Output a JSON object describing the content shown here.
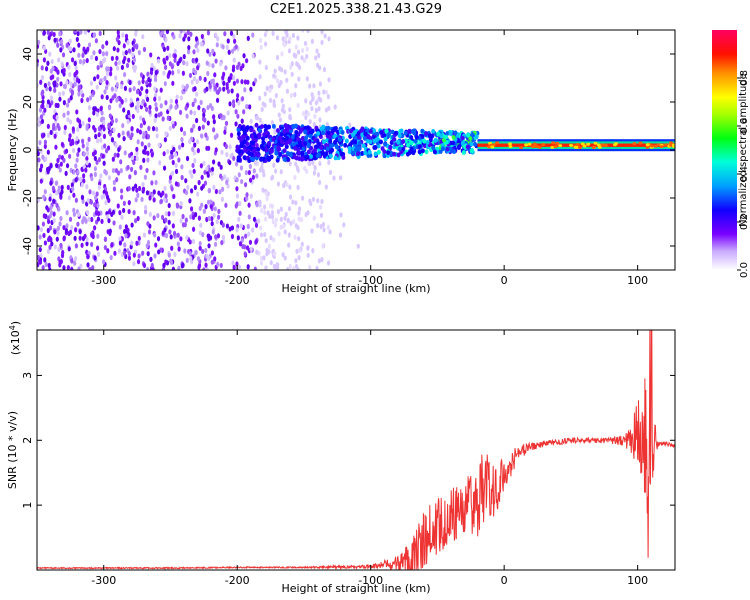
{
  "title": "C2E1.2025.338.21.43.G29",
  "top_chart": {
    "type": "heatmap",
    "xlabel": "Height of straight line (km)",
    "ylabel": "Frequency (Hz)",
    "xlim": [
      -350,
      128
    ],
    "ylim": [
      -50,
      50
    ],
    "xticks": [
      -300,
      -200,
      -100,
      0,
      100
    ],
    "yticks": [
      -40,
      -20,
      0,
      20,
      40
    ],
    "colorbar": {
      "label": "Normalized spectral amplitude",
      "range": [
        0,
        1
      ],
      "ticks": [
        "0.0",
        "0.2",
        "0.4",
        "0.6",
        "0.8"
      ],
      "colormap": [
        "#f0e8ff",
        "#a060ff",
        "#6a00ff",
        "#0000ff",
        "#00aaff",
        "#00ffcc",
        "#00ff00",
        "#aaff00",
        "#ffff00",
        "#ffaa00",
        "#ff2200",
        "#ff0066"
      ]
    },
    "regions": [
      {
        "desc": "broadband noise",
        "x_range": [
          -350,
          -130
        ],
        "freq_range": [
          -50,
          50
        ],
        "amplitude": 0.15
      },
      {
        "desc": "emerging tone",
        "x_range": [
          -200,
          -20
        ],
        "freq_center": 3,
        "amplitude": 0.5
      },
      {
        "desc": "stable tone",
        "x_range": [
          -20,
          128
        ],
        "freq_center": 2,
        "amplitude": 0.95
      }
    ]
  },
  "bottom_chart": {
    "type": "line",
    "xlabel": "Height of straight line (km)",
    "ylabel": "SNR (10 * v/v)",
    "multiplier": "(x10",
    "multiplier_exp": "4",
    "multiplier_close": ")",
    "xlim": [
      -350,
      128
    ],
    "ylim": [
      0,
      3.7
    ],
    "xticks": [
      -300,
      -200,
      -100,
      0,
      100
    ],
    "yticks": [
      1,
      2,
      3
    ],
    "color": "#ee3333",
    "x": [
      -350,
      -300,
      -250,
      -200,
      -150,
      -100,
      -80,
      -70,
      -60,
      -50,
      -40,
      -30,
      -20,
      -15,
      -10,
      -5,
      0,
      10,
      20,
      30,
      40,
      50,
      60,
      70,
      80,
      90,
      95,
      100,
      105,
      108,
      110,
      112,
      115,
      120,
      128
    ],
    "y": [
      0.03,
      0.03,
      0.03,
      0.04,
      0.04,
      0.05,
      0.1,
      0.2,
      0.45,
      0.7,
      0.85,
      0.95,
      1.1,
      1.3,
      1.2,
      1.3,
      1.5,
      1.8,
      1.9,
      1.95,
      1.97,
      2.0,
      2.0,
      2.0,
      2.0,
      2.0,
      2.0,
      2.05,
      2.1,
      1.6,
      0.05,
      2.0,
      1.95,
      1.95,
      1.92
    ],
    "noise_amp": [
      0.01,
      0.01,
      0.01,
      0.01,
      0.01,
      0.03,
      0.12,
      0.3,
      0.45,
      0.45,
      0.45,
      0.4,
      0.6,
      0.6,
      0.5,
      0.4,
      0.3,
      0.15,
      0.06,
      0.05,
      0.04,
      0.04,
      0.04,
      0.04,
      0.05,
      0.1,
      0.2,
      0.6,
      0.9,
      1.2,
      0.5,
      0.5,
      0.05,
      0.03,
      0.03
    ]
  }
}
